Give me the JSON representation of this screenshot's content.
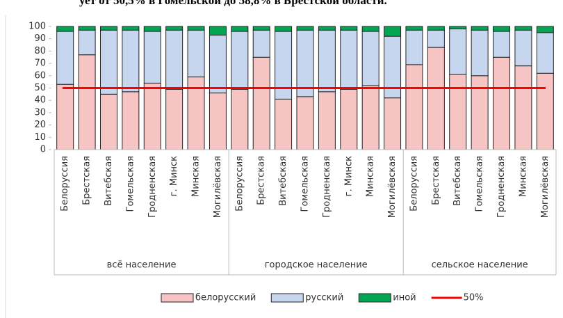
{
  "text_above": "ует от 50,5% в Гомельской до 58,8% в Брестской области.",
  "chart_data": {
    "type": "stacked_bar",
    "group_names": [
      "всё население",
      "городское население",
      "сельское население"
    ],
    "categories": [
      [
        "Белоруссия",
        "Брестская",
        "Витебская",
        "Гомельская",
        "Гродненская",
        "г. Минск",
        "Минская",
        "Могилёвская"
      ],
      [
        "Белоруссия",
        "Брестская",
        "Витебская",
        "Гомельская",
        "Гродненская",
        "г. Минск",
        "Минская",
        "Могилёвская"
      ],
      [
        "Белоруссия",
        "Брестская",
        "Витебская",
        "Гомельская",
        "Гродненская",
        "Минская",
        "Могилёвская"
      ]
    ],
    "series": [
      {
        "name": "белорусский",
        "color": "#f6c4c3",
        "values": [
          [
            53,
            77,
            45,
            47,
            54,
            49,
            59,
            46
          ],
          [
            49,
            75,
            41,
            43,
            47,
            49,
            52,
            42
          ],
          [
            69,
            83,
            61,
            60,
            75,
            68,
            62
          ]
        ]
      },
      {
        "name": "русский",
        "color": "#c6d6ee",
        "values": [
          [
            43,
            20,
            52,
            50,
            42,
            48,
            38,
            47
          ],
          [
            47,
            22,
            55,
            54,
            50,
            48,
            44,
            50
          ],
          [
            28,
            14,
            37,
            37,
            21,
            29,
            33
          ]
        ]
      },
      {
        "name": "иной",
        "color": "#00a651",
        "values": [
          [
            4,
            3,
            3,
            3,
            4,
            3,
            3,
            7
          ],
          [
            4,
            3,
            4,
            3,
            3,
            3,
            4,
            8
          ],
          [
            3,
            3,
            2,
            3,
            4,
            3,
            5
          ]
        ]
      }
    ],
    "reference_line": {
      "name": "50%",
      "value": 50,
      "color": "#ff0000"
    },
    "ylim": [
      0,
      100
    ],
    "yticks": [
      0,
      10,
      20,
      30,
      40,
      50,
      60,
      70,
      80,
      90,
      100
    ]
  }
}
